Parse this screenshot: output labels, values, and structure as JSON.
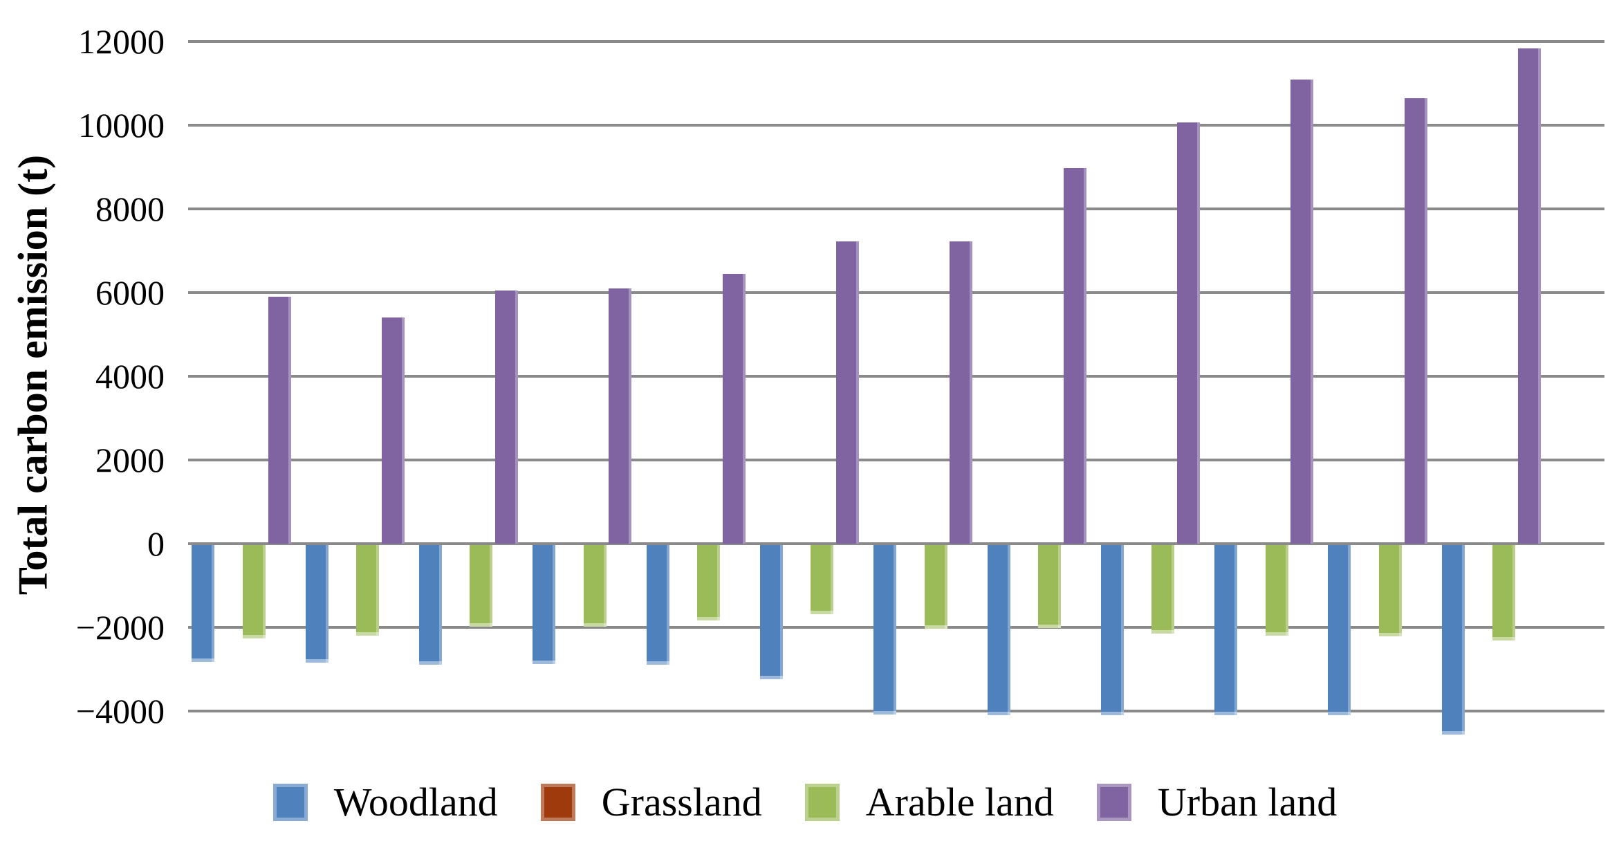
{
  "chart_data": {
    "type": "bar",
    "title": "",
    "xlabel": "",
    "ylabel": "Total carbon emission (t)",
    "ylim": [
      -4000,
      12000
    ],
    "ytick_step": 2000,
    "ytick_labels": [
      "12000",
      "10000",
      "8000",
      "6000",
      "4000",
      "2000",
      "0",
      "−2000",
      "−4000"
    ],
    "ytick_values": [
      12000,
      10000,
      8000,
      6000,
      4000,
      2000,
      0,
      -2000,
      -4000
    ],
    "grid": "horizontal",
    "legend_position": "bottom",
    "x_axis_labels_visible": false,
    "n_groups": 12,
    "gridline_color": "#8a8a8a",
    "background_color": "#ffffff",
    "series": [
      {
        "name": "Woodland",
        "color": "#4F81BD",
        "values": [
          -2830,
          -2840,
          -2890,
          -2880,
          -2900,
          -3240,
          -4080,
          -4100,
          -4100,
          -4100,
          -4100,
          -4560
        ]
      },
      {
        "name": "Grassland",
        "color": "#9E3A0C",
        "values": [
          0,
          0,
          0,
          0,
          0,
          0,
          0,
          0,
          0,
          0,
          0,
          0
        ]
      },
      {
        "name": "Arable land",
        "color": "#9BBB59",
        "values": [
          -2270,
          -2200,
          -1980,
          -1990,
          -1840,
          -1680,
          -2040,
          -2010,
          -2150,
          -2200,
          -2210,
          -2310
        ]
      },
      {
        "name": "Urban land",
        "color": "#8064A2",
        "values": [
          5900,
          5400,
          6050,
          6100,
          6450,
          7220,
          7230,
          8980,
          10060,
          11090,
          10640,
          11840
        ]
      }
    ]
  }
}
